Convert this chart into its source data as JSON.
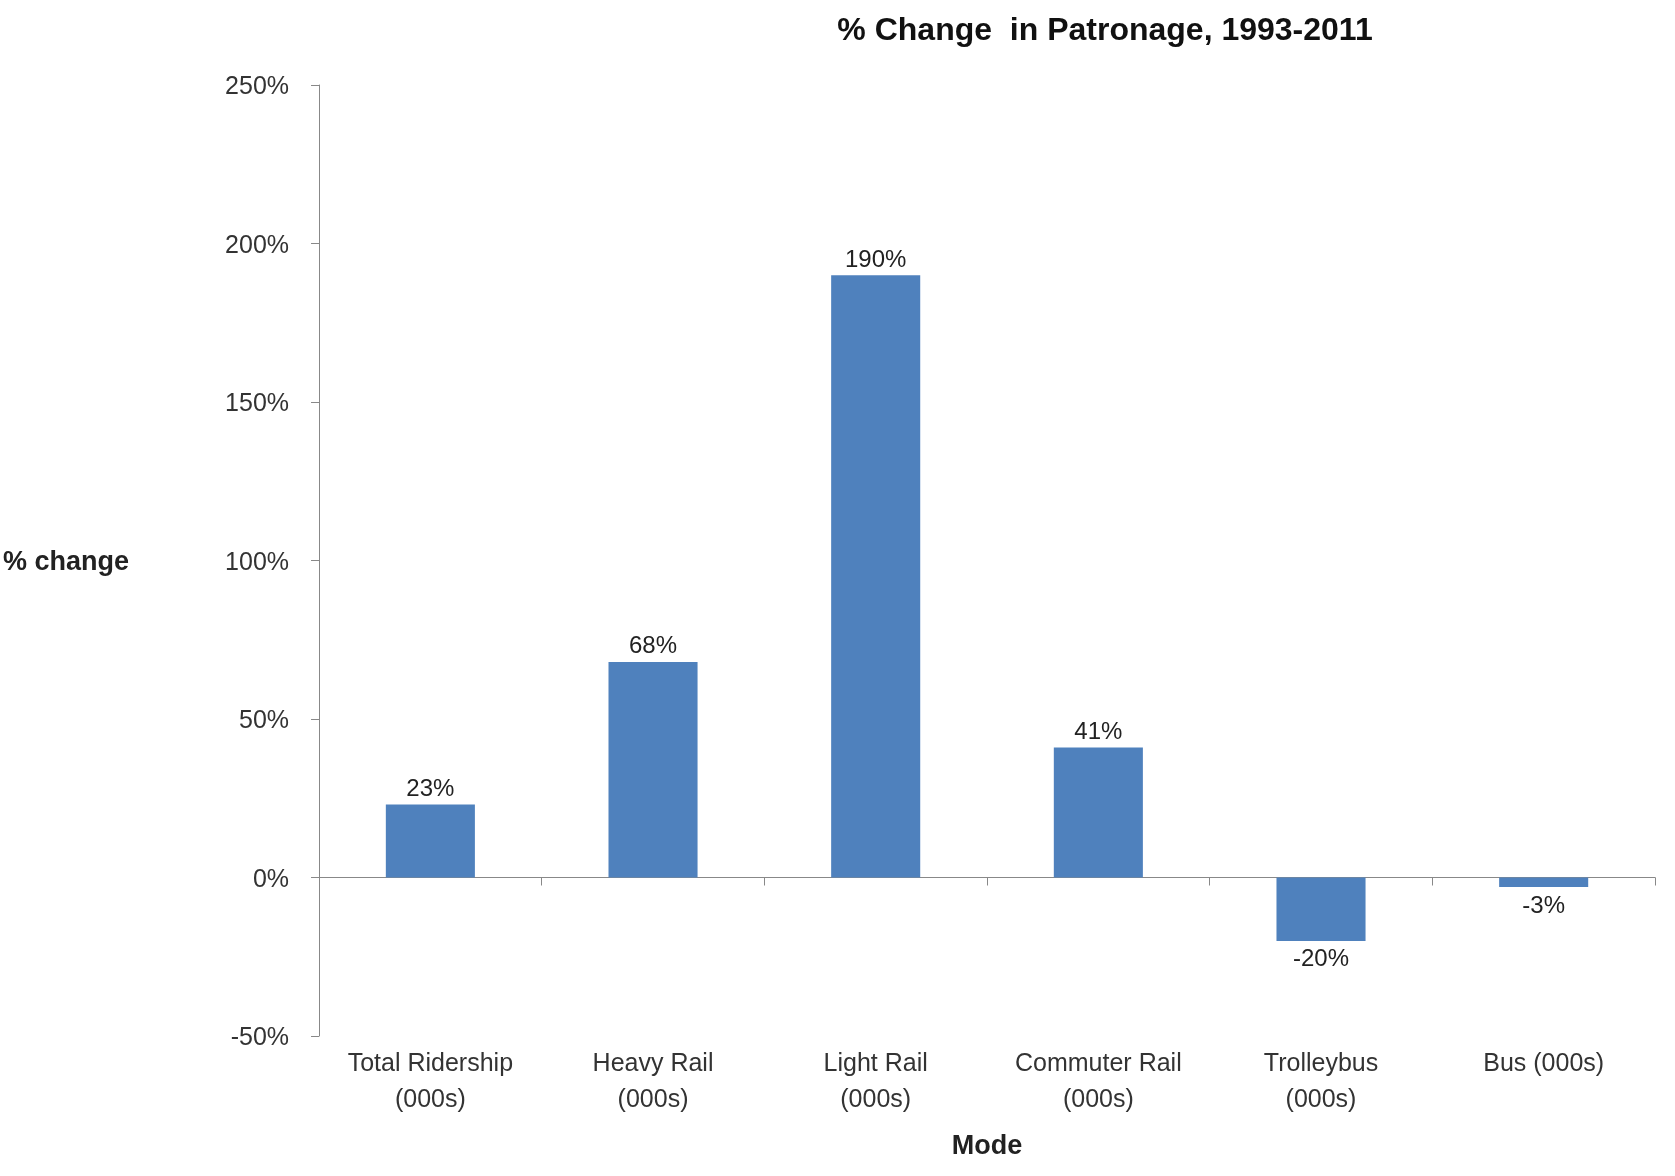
{
  "chart_data": {
    "type": "bar",
    "title": "% Change  in Patronage, 1993-2011",
    "xlabel": "Mode",
    "ylabel": "% change",
    "categories": [
      "Total Ridership\n(000s)",
      "Heavy Rail\n(000s)",
      "Light Rail\n(000s)",
      "Commuter Rail\n(000s)",
      "Trolleybus\n(000s)",
      "Bus (000s)"
    ],
    "values": [
      23,
      68,
      190,
      41,
      -20,
      -3
    ],
    "value_labels": [
      "23%",
      "68%",
      "190%",
      "41%",
      "-20%",
      "-3%"
    ],
    "color": "#4f81bd",
    "ylim": [
      -50,
      250
    ],
    "yticks": [
      {
        "value": -50,
        "label": "-50%"
      },
      {
        "value": 0,
        "label": "0%"
      },
      {
        "value": 50,
        "label": "50%"
      },
      {
        "value": 100,
        "label": "100%"
      },
      {
        "value": 150,
        "label": "150%"
      },
      {
        "value": 200,
        "label": "200%"
      },
      {
        "value": 250,
        "label": "250%"
      }
    ],
    "tick_labels": "xy"
  }
}
